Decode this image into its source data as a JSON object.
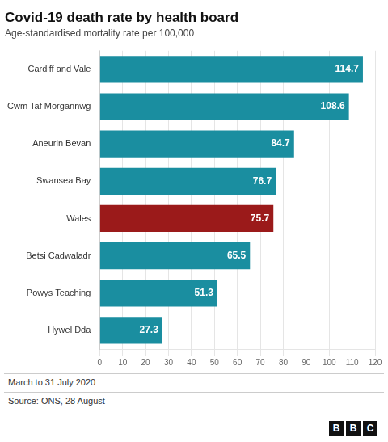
{
  "chart_data": {
    "type": "bar",
    "orientation": "horizontal",
    "title": "Covid-19 death rate by health board",
    "subtitle": "Age-standardised mortality rate per 100,000",
    "categories": [
      "Cardiff and Vale",
      "Cwm Taf Morgannwg",
      "Aneurin Bevan",
      "Swansea Bay",
      "Wales",
      "Betsi Cadwaladr",
      "Powys Teaching",
      "Hywel Dda"
    ],
    "values": [
      114.7,
      108.6,
      84.7,
      76.7,
      75.7,
      65.5,
      51.3,
      27.3
    ],
    "colors": [
      "#1a8ea0",
      "#1a8ea0",
      "#1a8ea0",
      "#1a8ea0",
      "#9b1a1a",
      "#1a8ea0",
      "#1a8ea0",
      "#1a8ea0"
    ],
    "xlim": [
      0,
      120
    ],
    "xticks": [
      0,
      10,
      20,
      30,
      40,
      50,
      60,
      70,
      80,
      90,
      100,
      110,
      120
    ],
    "grid": true,
    "data_labels": true,
    "annotations": [
      "March to 31 July 2020",
      "Source: ONS, 28 August",
      "BBC"
    ]
  }
}
